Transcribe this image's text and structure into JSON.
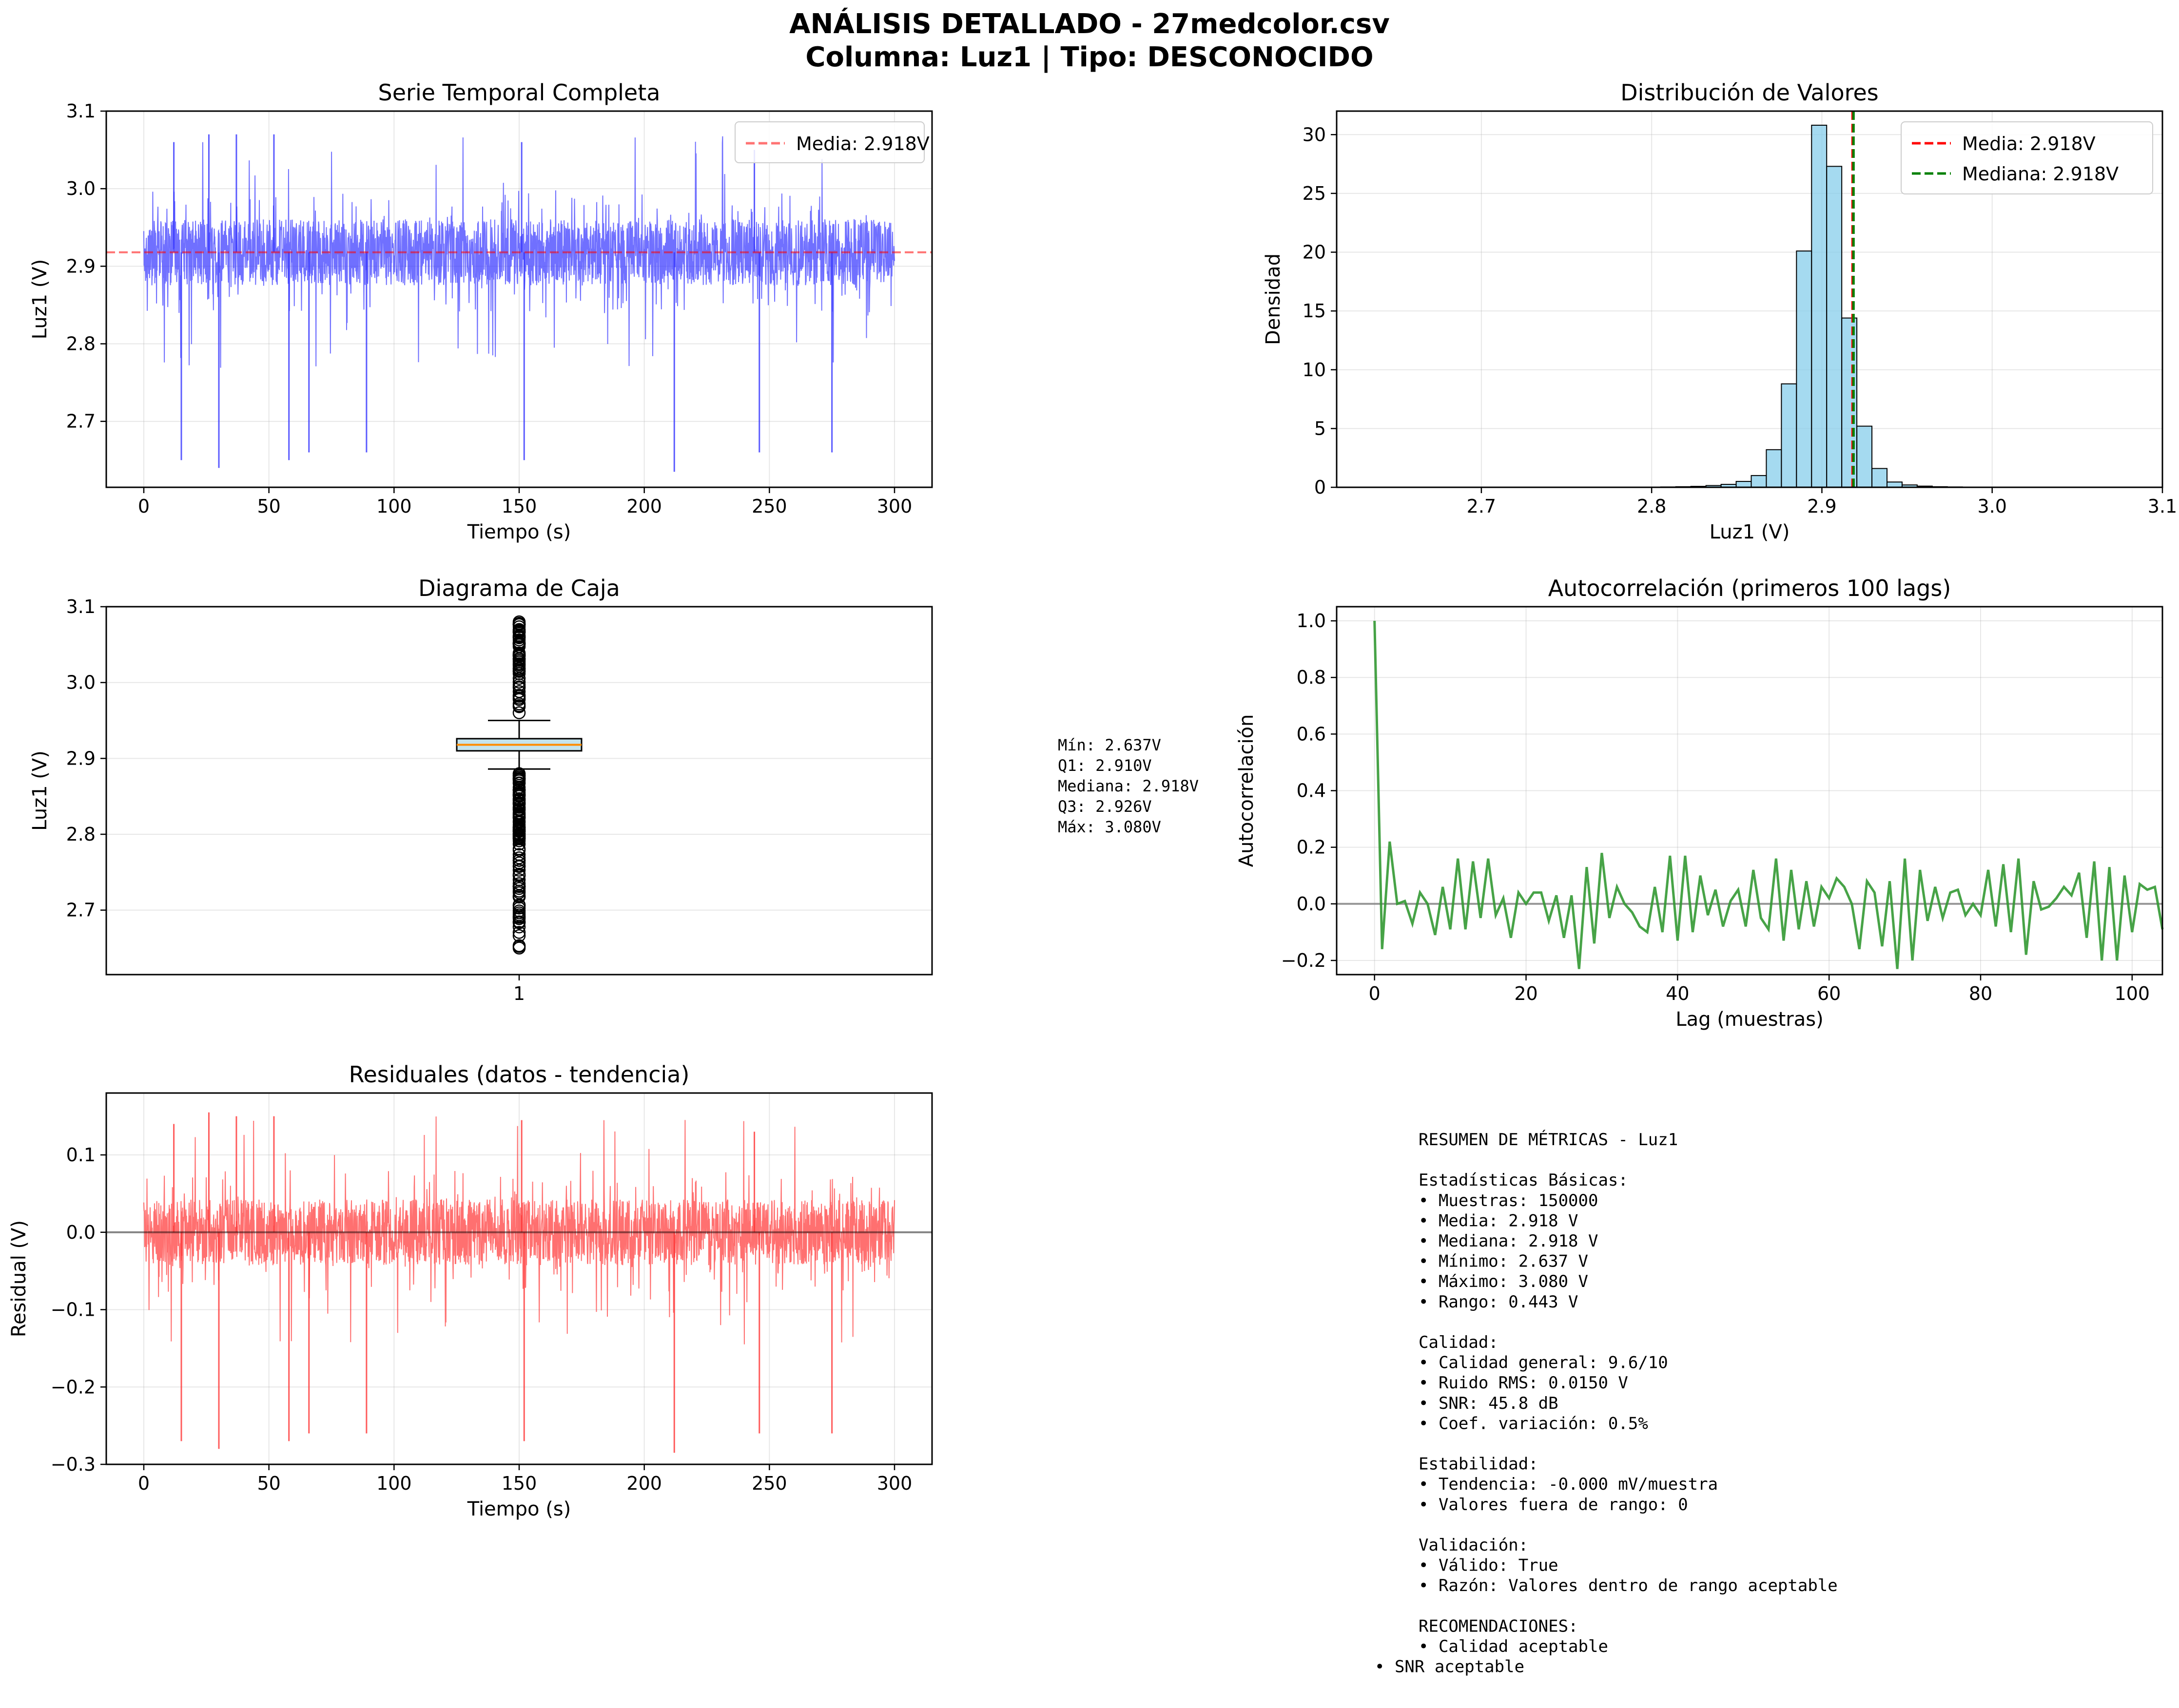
{
  "suptitle": {
    "line1": "ANÁLISIS DETALLADO - 27medcolor.csv",
    "line2": "Columna: Luz1 | Tipo: DESCONOCIDO"
  },
  "colors": {
    "signal": "#3333ff",
    "mean": "#ff0000",
    "median": "#008000",
    "hist_fill": "#87ceeb",
    "autocorr": "#339933",
    "residual": "#ff3333",
    "box_fill": "#add8e6",
    "box_median": "#ff8c00",
    "zero_line": "#808080"
  },
  "chart_data": [
    {
      "id": "timeseries",
      "type": "line",
      "title": "Serie Temporal Completa",
      "xlabel": "Tiempo (s)",
      "ylabel": "Luz1 (V)",
      "xlim": [
        -15,
        315
      ],
      "ylim": [
        2.615,
        3.1
      ],
      "xticks": [
        "0",
        "50",
        "100",
        "150",
        "200",
        "250",
        "300"
      ],
      "yticks": [
        "2.7",
        "2.8",
        "2.9",
        "3.0",
        "3.1"
      ],
      "grid": true,
      "legend": {
        "position": "top-right",
        "entries": [
          {
            "label": "Media: 2.918V",
            "style": "dashed-red-light"
          }
        ]
      },
      "mean": 2.918,
      "x_range": [
        0,
        300
      ],
      "notable_spikes": [
        {
          "x": 12,
          "y": 3.06
        },
        {
          "x": 15,
          "y": 2.65
        },
        {
          "x": 26,
          "y": 3.07
        },
        {
          "x": 30,
          "y": 2.64
        },
        {
          "x": 37,
          "y": 3.07
        },
        {
          "x": 52,
          "y": 3.07
        },
        {
          "x": 58,
          "y": 2.65
        },
        {
          "x": 66,
          "y": 2.66
        },
        {
          "x": 89,
          "y": 2.66
        },
        {
          "x": 151,
          "y": 3.06
        },
        {
          "x": 152,
          "y": 2.65
        },
        {
          "x": 212,
          "y": 2.635
        },
        {
          "x": 244,
          "y": 3.05
        },
        {
          "x": 246,
          "y": 2.66
        },
        {
          "x": 275,
          "y": 2.66
        }
      ]
    },
    {
      "id": "histogram",
      "type": "bar",
      "title": "Distribución de Valores",
      "xlabel": "Luz1 (V)",
      "ylabel": "Densidad",
      "xlim": [
        2.615,
        3.1
      ],
      "ylim": [
        0,
        32
      ],
      "xticks": [
        "2.7",
        "2.8",
        "2.9",
        "3.0",
        "3.1"
      ],
      "yticks": [
        "0",
        "5",
        "10",
        "15",
        "20",
        "25",
        "30"
      ],
      "grid": true,
      "legend": {
        "position": "top-right",
        "entries": [
          {
            "label": "Media: 2.918V",
            "style": "dashed-red"
          },
          {
            "label": "Mediana: 2.918V",
            "style": "dashed-green"
          }
        ]
      },
      "bin_start": 2.637,
      "bin_width": 0.00886,
      "densities": [
        0.02,
        0.01,
        0.01,
        0.01,
        0.01,
        0.01,
        0.01,
        0.01,
        0.01,
        0.01,
        0.01,
        0.01,
        0.01,
        0.01,
        0.01,
        0.01,
        0.01,
        0.01,
        0.02,
        0.03,
        0.05,
        0.08,
        0.15,
        0.25,
        0.5,
        1.0,
        3.2,
        8.8,
        20.1,
        30.8,
        27.3,
        14.4,
        5.2,
        1.6,
        0.45,
        0.2,
        0.1,
        0.05,
        0.03,
        0.02,
        0.02,
        0.02,
        0.01,
        0.01,
        0.01,
        0.01,
        0.01,
        0.01,
        0.01,
        0.01
      ],
      "mean": 2.918,
      "median": 2.918
    },
    {
      "id": "boxplot",
      "type": "box",
      "title": "Diagrama de Caja",
      "ylabel": "Luz1 (V)",
      "ylim": [
        2.615,
        3.1
      ],
      "xticks": [
        "1"
      ],
      "yticks": [
        "2.7",
        "2.8",
        "2.9",
        "3.0",
        "3.1"
      ],
      "grid": true,
      "min": 2.637,
      "q1": 2.91,
      "median": 2.918,
      "q3": 2.926,
      "max": 3.08,
      "whisker_low": 2.886,
      "whisker_high": 2.95,
      "stats_lines": [
        "Mín: 2.637V",
        "Q1: 2.910V",
        "Mediana: 2.918V",
        "Q3: 2.926V",
        "Máx: 3.080V"
      ]
    },
    {
      "id": "autocorr",
      "type": "line",
      "title": "Autocorrelación (primeros 100 lags)",
      "xlabel": "Lag (muestras)",
      "ylabel": "Autocorrelación",
      "xlim": [
        -5,
        104
      ],
      "ylim": [
        -0.25,
        1.05
      ],
      "xticks": [
        "0",
        "20",
        "40",
        "60",
        "80",
        "100"
      ],
      "yticks": [
        "−0.2",
        "0.0",
        "0.2",
        "0.4",
        "0.6",
        "0.8",
        "1.0"
      ],
      "grid": true,
      "x_start": 0,
      "values": [
        1.0,
        -0.16,
        0.22,
        0.0,
        0.01,
        -0.07,
        0.04,
        0.0,
        -0.11,
        0.06,
        -0.09,
        0.16,
        -0.09,
        0.15,
        -0.05,
        0.16,
        -0.04,
        0.02,
        -0.12,
        0.04,
        0.0,
        0.04,
        0.04,
        -0.06,
        0.03,
        -0.12,
        0.03,
        -0.23,
        0.13,
        -0.14,
        0.18,
        -0.05,
        0.06,
        0.0,
        -0.03,
        -0.08,
        -0.1,
        0.06,
        -0.1,
        0.17,
        -0.13,
        0.17,
        -0.1,
        0.1,
        -0.04,
        0.05,
        -0.08,
        0.01,
        0.05,
        -0.08,
        0.12,
        -0.05,
        -0.09,
        0.16,
        -0.13,
        0.12,
        -0.09,
        0.08,
        -0.08,
        0.06,
        0.02,
        0.09,
        0.06,
        0.0,
        -0.16,
        0.08,
        0.04,
        -0.15,
        0.08,
        -0.23,
        0.16,
        -0.2,
        0.12,
        -0.06,
        0.06,
        -0.05,
        0.04,
        0.05,
        -0.04,
        0.0,
        -0.04,
        0.12,
        -0.08,
        0.14,
        -0.1,
        0.16,
        -0.18,
        0.08,
        -0.02,
        -0.01,
        0.02,
        0.06,
        0.03,
        0.11,
        -0.12,
        0.15,
        -0.2,
        0.13,
        -0.2,
        0.1,
        -0.1,
        0.07,
        0.05,
        0.06,
        -0.09
      ]
    },
    {
      "id": "residuals",
      "type": "line",
      "title": "Residuales (datos - tendencia)",
      "xlabel": "Tiempo (s)",
      "ylabel": "Residual (V)",
      "xlim": [
        -15,
        315
      ],
      "ylim": [
        -0.3,
        0.18
      ],
      "xticks": [
        "0",
        "50",
        "100",
        "150",
        "200",
        "250",
        "300"
      ],
      "yticks": [
        "−0.3",
        "−0.2",
        "−0.1",
        "0.0",
        "0.1"
      ],
      "grid": true,
      "x_range": [
        0,
        300
      ],
      "notable_spikes": [
        {
          "x": 12,
          "y": 0.14
        },
        {
          "x": 15,
          "y": -0.27
        },
        {
          "x": 26,
          "y": 0.155
        },
        {
          "x": 30,
          "y": -0.28
        },
        {
          "x": 37,
          "y": 0.15
        },
        {
          "x": 52,
          "y": 0.15
        },
        {
          "x": 58,
          "y": -0.27
        },
        {
          "x": 66,
          "y": -0.26
        },
        {
          "x": 89,
          "y": -0.26
        },
        {
          "x": 151,
          "y": 0.145
        },
        {
          "x": 152,
          "y": -0.27
        },
        {
          "x": 212,
          "y": -0.285
        },
        {
          "x": 244,
          "y": 0.13
        },
        {
          "x": 246,
          "y": -0.26
        },
        {
          "x": 275,
          "y": -0.26
        }
      ]
    }
  ],
  "summary": {
    "lines": [
      "RESUMEN DE MÉTRICAS - Luz1",
      "",
      "Estadísticas Básicas:",
      "• Muestras: 150000",
      "• Media: 2.918 V",
      "• Mediana: 2.918 V",
      "• Mínimo: 2.637 V",
      "• Máximo: 3.080 V",
      "• Rango: 0.443 V",
      "",
      "Calidad:",
      "• Calidad general: 9.6/10",
      "• Ruido RMS: 0.0150 V",
      "• SNR: 45.8 dB",
      "• Coef. variación: 0.5%",
      "",
      "Estabilidad:",
      "• Tendencia: -0.000 mV/muestra",
      "• Valores fuera de rango: 0",
      "",
      "Validación:",
      "• Válido: True",
      "• Razón: Valores dentro de rango aceptable",
      "",
      "RECOMENDACIONES:",
      "• Calidad aceptable"
    ],
    "last_line": "• SNR aceptable"
  }
}
